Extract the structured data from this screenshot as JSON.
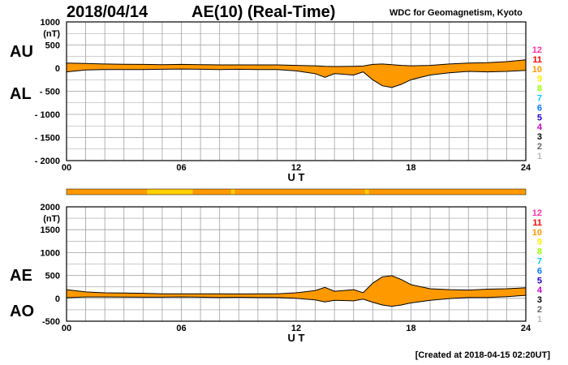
{
  "header": {
    "date": "2018/04/14",
    "title": "AE(10) (Real-Time)",
    "source": "WDC for Geomagnetism, Kyoto"
  },
  "footer": {
    "created": "[Created at 2018-04-15 02:20UT]"
  },
  "colors": {
    "fill": "#ff9900",
    "grid": "#a0a0a0",
    "frame": "#000000",
    "status_normal": "#ff9900",
    "status_alt": "#ffff00"
  },
  "chart_data": [
    {
      "type": "area",
      "panel": "top",
      "series": [
        {
          "name": "AU",
          "x": [
            0,
            1,
            2,
            3,
            4,
            5,
            6,
            7,
            8,
            9,
            10,
            11,
            12,
            13,
            13.5,
            14,
            15,
            15.5,
            16,
            16.5,
            17,
            17.5,
            18,
            19,
            20,
            21,
            22,
            23,
            24
          ],
          "values": [
            110,
            100,
            90,
            85,
            80,
            75,
            80,
            75,
            70,
            70,
            70,
            70,
            60,
            50,
            40,
            35,
            40,
            45,
            80,
            90,
            75,
            60,
            50,
            60,
            90,
            110,
            120,
            140,
            180
          ]
        },
        {
          "name": "AL",
          "x": [
            0,
            1,
            2,
            3,
            4,
            5,
            6,
            7,
            8,
            9,
            10,
            11,
            12,
            13,
            13.5,
            14,
            15,
            15.5,
            16,
            16.5,
            17,
            17.5,
            18,
            19,
            20,
            21,
            22,
            23,
            24
          ],
          "values": [
            -80,
            -40,
            -30,
            -30,
            -30,
            -25,
            -20,
            -25,
            -30,
            -25,
            -30,
            -30,
            -60,
            -120,
            -200,
            -120,
            -150,
            -80,
            -250,
            -380,
            -420,
            -350,
            -250,
            -150,
            -100,
            -70,
            -80,
            -70,
            -50
          ]
        }
      ],
      "label_upper": "AU",
      "label_lower": "AL",
      "ylabel": "(nT)",
      "xlabel": "U T",
      "ylim": [
        -2000,
        1000
      ],
      "yticks": [
        "1000",
        "500",
        "0",
        "- 500",
        "- 1000",
        "- 1500",
        "- 2000"
      ],
      "xticks": [
        "00",
        "06",
        "12",
        "18",
        "24"
      ],
      "grid": true
    },
    {
      "type": "area",
      "panel": "bottom",
      "series": [
        {
          "name": "AE",
          "x": [
            0,
            1,
            2,
            3,
            4,
            5,
            6,
            7,
            8,
            9,
            10,
            11,
            12,
            13,
            13.5,
            14,
            15,
            15.5,
            16,
            16.5,
            17,
            17.5,
            18,
            19,
            20,
            21,
            22,
            23,
            24
          ],
          "values": [
            190,
            140,
            120,
            115,
            110,
            100,
            100,
            100,
            100,
            95,
            100,
            100,
            120,
            170,
            240,
            155,
            190,
            125,
            330,
            470,
            495,
            410,
            300,
            210,
            190,
            180,
            200,
            210,
            230
          ]
        },
        {
          "name": "AO",
          "x": [
            0,
            1,
            2,
            3,
            4,
            5,
            6,
            7,
            8,
            9,
            10,
            11,
            12,
            13,
            13.5,
            14,
            15,
            15.5,
            16,
            16.5,
            17,
            17.5,
            18,
            19,
            20,
            21,
            22,
            23,
            24
          ],
          "values": [
            15,
            30,
            30,
            28,
            25,
            25,
            30,
            25,
            20,
            23,
            20,
            20,
            0,
            -35,
            -80,
            -43,
            -55,
            -18,
            -85,
            -145,
            -173,
            -145,
            -100,
            -45,
            -5,
            20,
            20,
            35,
            65
          ]
        }
      ],
      "label_upper": "AE",
      "label_lower": "AO",
      "ylabel": "(nT)",
      "xlabel": "U T",
      "ylim": [
        -500,
        2000
      ],
      "yticks": [
        "2000",
        "1500",
        "1000",
        "500",
        "0",
        "-500"
      ],
      "xticks": [
        "00",
        "06",
        "12",
        "18",
        "24"
      ],
      "grid": true
    }
  ],
  "status_bar": {
    "x_alt_segments": [
      [
        4.2,
        6.6
      ],
      [
        8.6,
        8.8
      ],
      [
        15.6,
        15.8
      ]
    ]
  },
  "station_scale": [
    {
      "label": "12",
      "color": "#ff33aa"
    },
    {
      "label": "11",
      "color": "#ff0000"
    },
    {
      "label": "10",
      "color": "#ff9900"
    },
    {
      "label": "9",
      "color": "#ffee00"
    },
    {
      "label": "8",
      "color": "#99ff00"
    },
    {
      "label": "7",
      "color": "#00ccff"
    },
    {
      "label": "6",
      "color": "#0077ff"
    },
    {
      "label": "5",
      "color": "#2200cc"
    },
    {
      "label": "4",
      "color": "#cc00cc"
    },
    {
      "label": "3",
      "color": "#000000"
    },
    {
      "label": "2",
      "color": "#666666"
    },
    {
      "label": "1",
      "color": "#bbbbbb"
    }
  ]
}
